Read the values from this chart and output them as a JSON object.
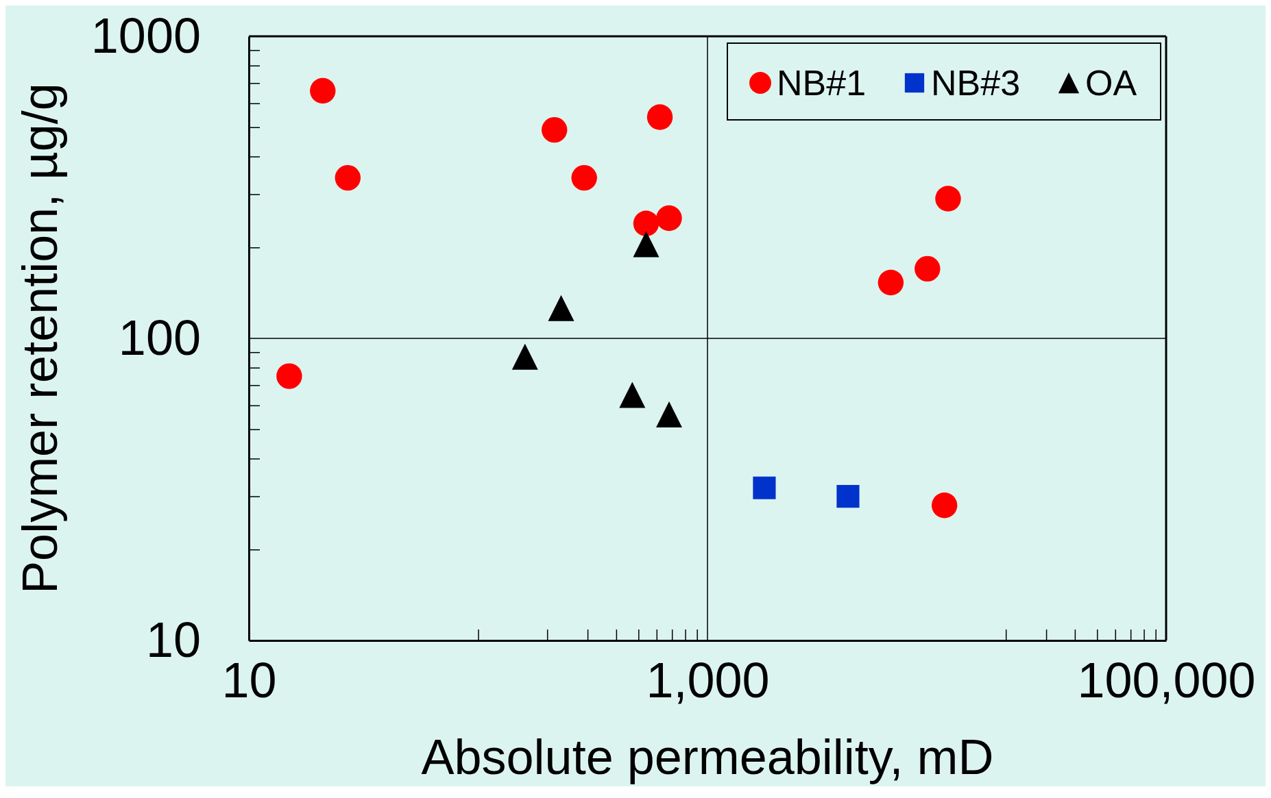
{
  "chart_data": {
    "type": "scatter",
    "xlabel": "Absolute permeability, mD",
    "ylabel": "Polymer retention, µg/g",
    "log": "xy",
    "legend": "top right",
    "xlim": [
      10,
      100000
    ],
    "xticks": [
      10,
      {
        "value": 100,
        "label": null
      },
      {
        "value": 200,
        "label": null
      },
      {
        "value": 300,
        "label": null
      },
      {
        "value": 400,
        "label": null
      },
      {
        "value": 500,
        "label": null
      },
      {
        "value": 600,
        "label": null
      },
      {
        "value": 700,
        "label": null
      },
      {
        "value": 800,
        "label": null
      },
      {
        "value": 900,
        "label": null
      },
      {
        "value": 1000,
        "label": "1,000"
      },
      {
        "value": 20000,
        "label": null
      },
      {
        "value": 30000,
        "label": null
      },
      {
        "value": 40000,
        "label": null
      },
      {
        "value": 50000,
        "label": null
      },
      {
        "value": 60000,
        "label": null
      },
      {
        "value": 70000,
        "label": null
      },
      {
        "value": 80000,
        "label": null
      },
      {
        "value": 90000,
        "label": null
      },
      {
        "value": 100000,
        "label": "100,000"
      }
    ],
    "ylim": [
      10,
      1000
    ],
    "yticks": [
      10,
      {
        "value": 20,
        "label": null
      },
      {
        "value": 30,
        "label": null
      },
      {
        "value": 40,
        "label": null
      },
      {
        "value": 50,
        "label": null
      },
      {
        "value": 60,
        "label": null
      },
      {
        "value": 70,
        "label": null
      },
      {
        "value": 80,
        "label": null
      },
      {
        "value": 90,
        "label": null
      },
      100,
      {
        "value": 200,
        "label": null
      },
      {
        "value": 300,
        "label": null
      },
      {
        "value": 400,
        "label": null
      },
      {
        "value": 500,
        "label": null
      },
      {
        "value": 600,
        "label": null
      },
      {
        "value": 700,
        "label": null
      },
      {
        "value": 800,
        "label": null
      },
      {
        "value": 900,
        "label": null
      },
      1000
    ],
    "ref_lines": [
      {
        "axis": "x",
        "value": 1000,
        "color": "#000000"
      },
      {
        "axis": "y",
        "value": 100,
        "color": "#000000"
      }
    ],
    "series": [
      {
        "name": "NB#1",
        "color": "#ff0000",
        "marker": "circle",
        "x": [
          21,
          27,
          15,
          215,
          290,
          620,
          540,
          680,
          11200,
          6300,
          9100,
          10800
        ],
        "values": [
          660,
          340,
          75,
          490,
          340,
          540,
          240,
          250,
          290,
          153,
          170,
          28
        ]
      },
      {
        "name": "NB#3",
        "color": "#0033cc",
        "marker": "square",
        "x": [
          1770,
          4100
        ],
        "values": [
          32,
          30
        ]
      },
      {
        "name": "OA",
        "color": "#000000",
        "marker": "triangle",
        "x": [
          540,
          230,
          160,
          470,
          680
        ],
        "values": [
          205,
          126,
          87,
          65,
          56
        ]
      }
    ]
  }
}
